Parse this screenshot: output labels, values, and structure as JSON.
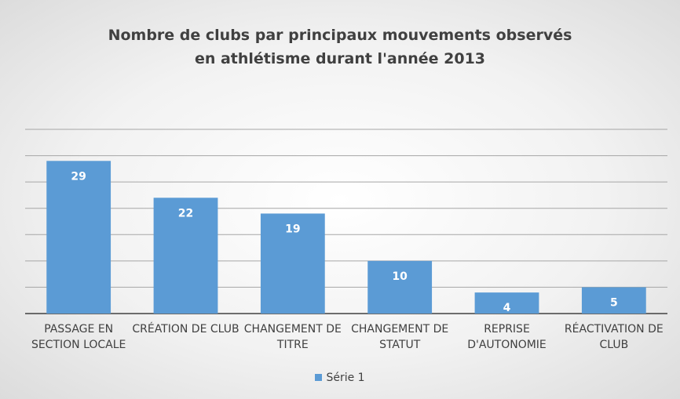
{
  "chart_data": {
    "type": "bar",
    "title": "Nombre de clubs par principaux mouvements observés en athlétisme durant l'année 2013",
    "categories": [
      "PASSAGE EN SECTION LOCALE",
      "CRÉATION DE CLUB",
      "CHANGEMENT DE TITRE",
      "CHANGEMENT DE STATUT",
      "REPRISE D'AUTONOMIE",
      "RÉACTIVATION DE CLUB"
    ],
    "series": [
      {
        "name": "Série 1",
        "color": "#5b9bd5",
        "values": [
          29,
          22,
          19,
          10,
          4,
          5
        ]
      }
    ],
    "ylim": [
      0,
      35
    ],
    "yticks": [
      0,
      5,
      10,
      15,
      20,
      25,
      30,
      35
    ],
    "grid": true,
    "legend": "bottom"
  }
}
